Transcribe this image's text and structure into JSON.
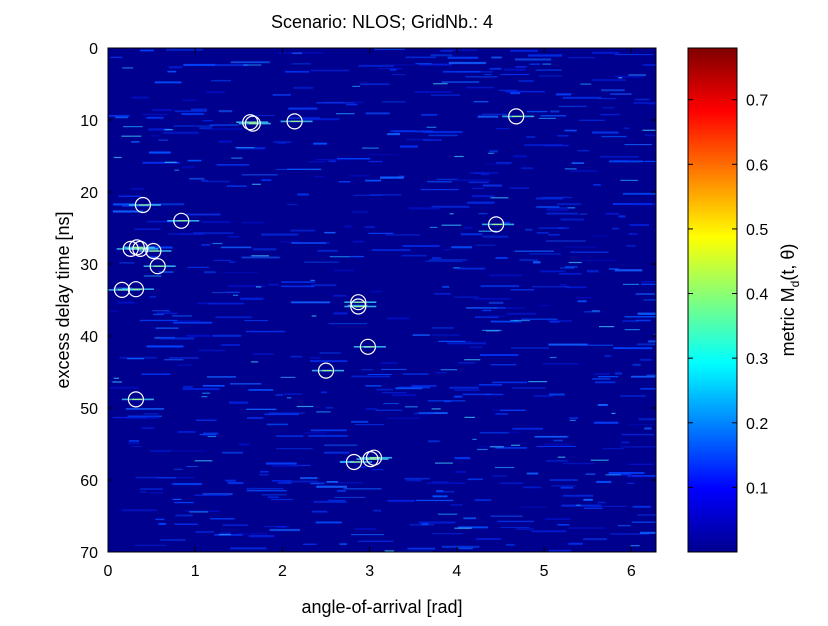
{
  "chart_data": {
    "type": "heatmap",
    "title": "Scenario: NLOS; GridNb.: 4",
    "xlabel": "angle-of-arrival [rad]",
    "ylabel": "excess delay time [ns]",
    "colorbar_label": "metric M_d(t, θ)",
    "colorbar_label_parts": {
      "prefix": "metric M",
      "sub": "d",
      "suffix": "(t, θ)"
    },
    "xlim": [
      0,
      6.283
    ],
    "ylim": [
      0,
      70
    ],
    "y_reversed": true,
    "x_ticks": [
      0,
      1,
      2,
      3,
      4,
      5,
      6
    ],
    "x_tick_labels": [
      "0",
      "1",
      "2",
      "3",
      "4",
      "5",
      "6"
    ],
    "y_ticks": [
      0,
      10,
      20,
      30,
      40,
      50,
      60,
      70
    ],
    "y_tick_labels": [
      "0",
      "10",
      "20",
      "30",
      "40",
      "50",
      "60",
      "70"
    ],
    "colorbar_range": [
      0,
      0.78
    ],
    "colorbar_ticks": [
      0.1,
      0.2,
      0.3,
      0.4,
      0.5,
      0.6,
      0.7
    ],
    "colorbar_tick_labels": [
      "0.1",
      "0.2",
      "0.3",
      "0.4",
      "0.5",
      "0.6",
      "0.7"
    ],
    "colormap": "jet",
    "background_color": "#00008f",
    "marker_color": "#ffffff",
    "grid": false,
    "detected_paths": [
      {
        "x": 1.63,
        "y": 10.3
      },
      {
        "x": 1.66,
        "y": 10.5
      },
      {
        "x": 2.14,
        "y": 10.2
      },
      {
        "x": 4.68,
        "y": 9.5
      },
      {
        "x": 0.4,
        "y": 21.8
      },
      {
        "x": 0.84,
        "y": 24.0
      },
      {
        "x": 4.45,
        "y": 24.5
      },
      {
        "x": 0.26,
        "y": 27.9
      },
      {
        "x": 0.33,
        "y": 27.7
      },
      {
        "x": 0.37,
        "y": 27.9
      },
      {
        "x": 0.52,
        "y": 28.2
      },
      {
        "x": 0.57,
        "y": 30.3
      },
      {
        "x": 0.16,
        "y": 33.6
      },
      {
        "x": 0.32,
        "y": 33.5
      },
      {
        "x": 2.87,
        "y": 35.3
      },
      {
        "x": 2.87,
        "y": 35.9
      },
      {
        "x": 2.98,
        "y": 41.5
      },
      {
        "x": 2.5,
        "y": 44.8
      },
      {
        "x": 0.32,
        "y": 48.8
      },
      {
        "x": 2.82,
        "y": 57.5
      },
      {
        "x": 3.01,
        "y": 57.1
      },
      {
        "x": 3.05,
        "y": 56.9
      }
    ]
  }
}
